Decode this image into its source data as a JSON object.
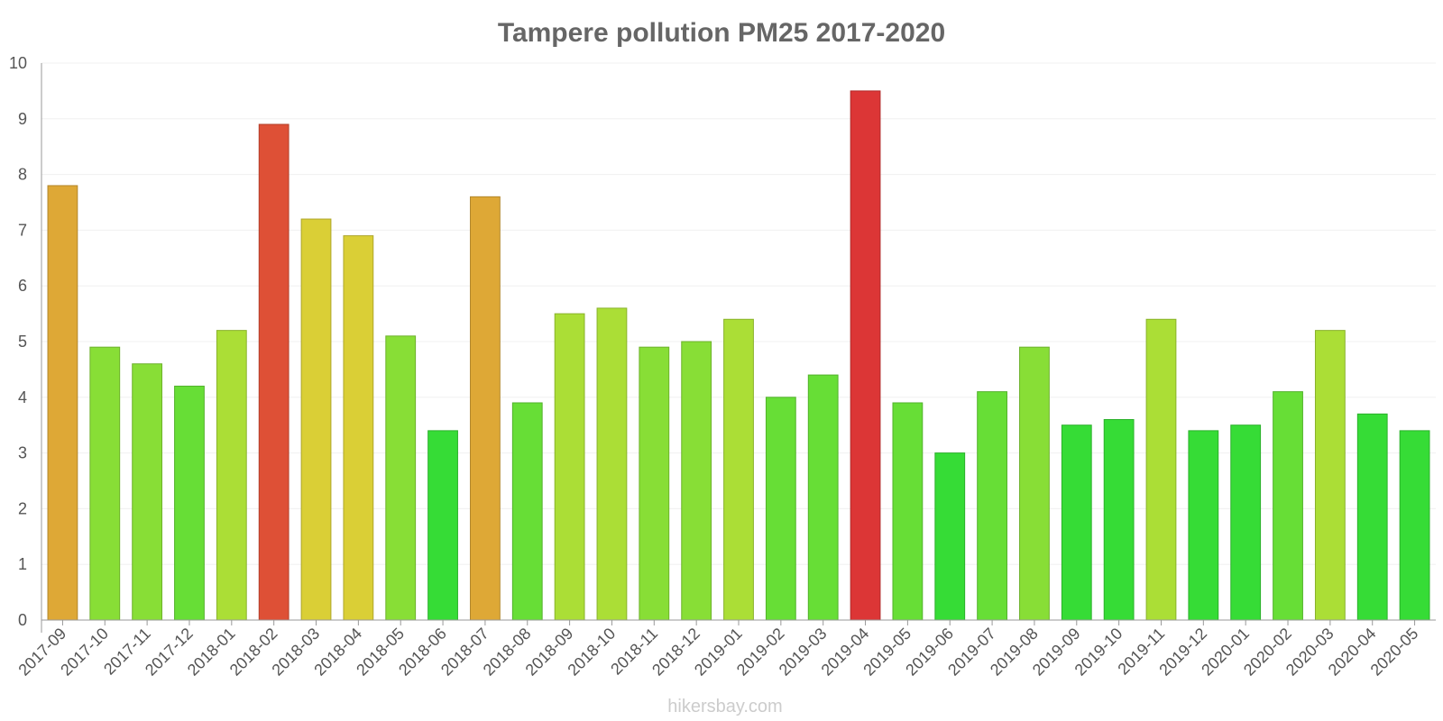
{
  "chart_data": {
    "type": "bar",
    "title": "Tampere pollution PM25 2017-2020",
    "xlabel": "",
    "ylabel": "",
    "ylim": [
      0,
      10
    ],
    "yticks": [
      "0",
      "1",
      "2",
      "3",
      "4",
      "5",
      "6",
      "7",
      "8",
      "9",
      "10"
    ],
    "grid": true,
    "categories": [
      "2017-09",
      "2017-10",
      "2017-11",
      "2017-12",
      "2018-01",
      "2018-02",
      "2018-03",
      "2018-04",
      "2018-05",
      "2018-06",
      "2018-07",
      "2018-08",
      "2018-09",
      "2018-10",
      "2018-11",
      "2018-12",
      "2019-01",
      "2019-02",
      "2019-03",
      "2019-04",
      "2019-05",
      "2019-06",
      "2019-07",
      "2019-08",
      "2019-09",
      "2019-10",
      "2019-11",
      "2019-12",
      "2020-01",
      "2020-02",
      "2020-03",
      "2020-04",
      "2020-05"
    ],
    "values": [
      7.8,
      4.9,
      4.6,
      4.2,
      5.2,
      8.9,
      7.2,
      6.9,
      5.1,
      3.4,
      7.6,
      3.9,
      5.5,
      5.6,
      4.9,
      5.0,
      5.4,
      4.0,
      4.4,
      9.5,
      3.9,
      3.0,
      4.1,
      4.9,
      3.5,
      3.6,
      5.4,
      3.4,
      3.5,
      4.1,
      5.2,
      3.7,
      3.4
    ],
    "colors": [
      "#dea836",
      "#88de36",
      "#88de36",
      "#67de36",
      "#abde36",
      "#de5036",
      "#dacf36",
      "#dacf36",
      "#88de36",
      "#36dc36",
      "#dea836",
      "#67de36",
      "#abde36",
      "#abde36",
      "#88de36",
      "#88de36",
      "#abde36",
      "#67de36",
      "#67de36",
      "#dc3636",
      "#67de36",
      "#36dc36",
      "#67de36",
      "#88de36",
      "#36dc36",
      "#36dc36",
      "#abde36",
      "#36dc36",
      "#36dc36",
      "#67de36",
      "#abde36",
      "#36dc36",
      "#36dc36"
    ]
  },
  "watermark": "hikersbay.com"
}
